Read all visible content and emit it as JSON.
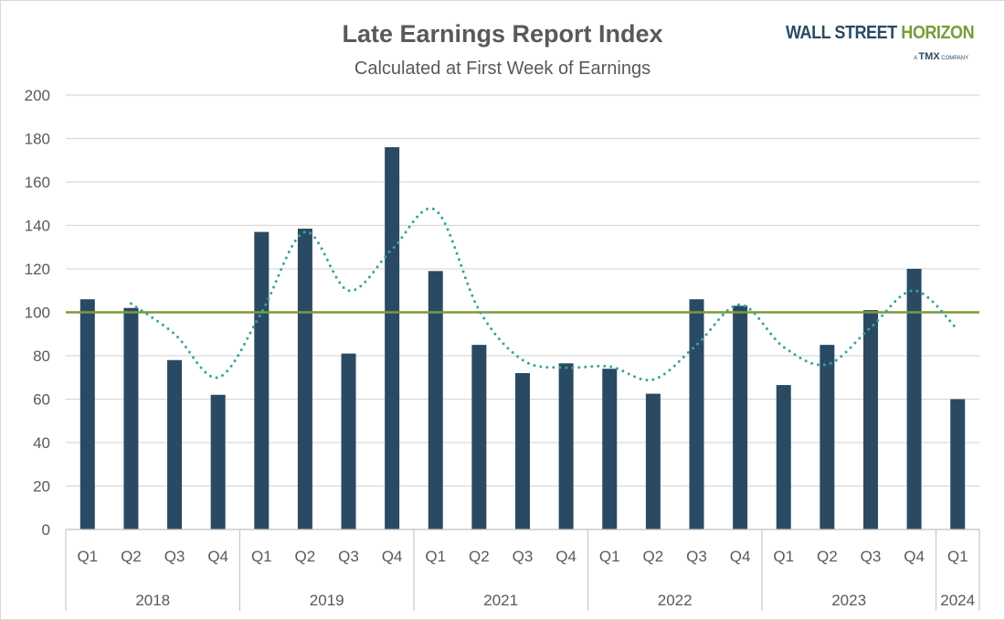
{
  "chart_data": {
    "type": "bar",
    "title": "Late Earnings Report Index",
    "subtitle": "Calculated at First Week of Earnings",
    "groups": [
      {
        "year": "2018",
        "quarters": [
          "Q1",
          "Q2",
          "Q3",
          "Q4"
        ]
      },
      {
        "year": "2019",
        "quarters": [
          "Q1",
          "Q2",
          "Q3",
          "Q4"
        ]
      },
      {
        "year": "2021",
        "quarters": [
          "Q1",
          "Q2",
          "Q3",
          "Q4"
        ]
      },
      {
        "year": "2022",
        "quarters": [
          "Q1",
          "Q2",
          "Q3",
          "Q4"
        ]
      },
      {
        "year": "2023",
        "quarters": [
          "Q1",
          "Q2",
          "Q3",
          "Q4"
        ]
      },
      {
        "year": "2024",
        "quarters": [
          "Q1"
        ]
      }
    ],
    "series": [
      {
        "type": "bar",
        "color": "#2a4a63",
        "values": [
          106,
          102,
          78,
          62,
          137,
          138.5,
          81,
          176,
          119,
          85,
          72,
          76.5,
          74,
          62.5,
          106,
          103,
          66.5,
          85,
          101,
          120,
          60
        ]
      },
      {
        "type": "line",
        "style": "dotted",
        "color": "#3aa39c",
        "values": [
          null,
          104,
          90,
          70,
          100,
          137,
          110,
          129,
          147,
          101,
          78,
          74.5,
          75,
          69,
          85,
          103.5,
          84,
          76,
          93,
          110,
          92
        ]
      },
      {
        "type": "reference-line",
        "color": "#7a9a3a",
        "value": 100
      }
    ],
    "ylim": [
      0,
      200
    ],
    "yticks": [
      0,
      20,
      40,
      60,
      80,
      100,
      120,
      140,
      160,
      180,
      200
    ],
    "grid": true,
    "legend": "none"
  },
  "logo": {
    "text": "WALL STREET HORIZON",
    "tagline": "A TMX COMPANY"
  }
}
